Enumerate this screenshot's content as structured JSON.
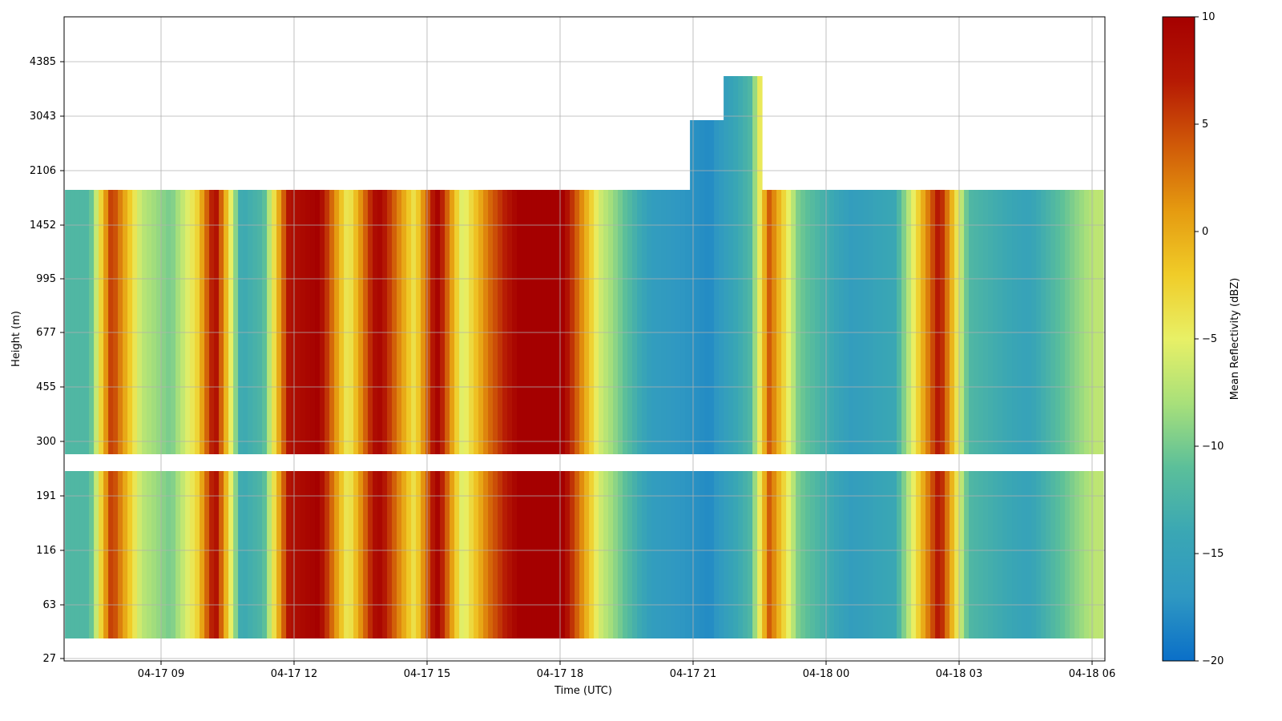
{
  "chart_data": {
    "type": "heatmap",
    "xlabel": "Time (UTC)",
    "ylabel": "Height (m)",
    "colorbar_label": "Mean Reflectivity (dBZ)",
    "x_ticks": [
      "04-17 09",
      "04-17 12",
      "04-17 15",
      "04-17 18",
      "04-17 21",
      "04-18 00",
      "04-18 03",
      "04-18 06"
    ],
    "y_ticks": [
      "27",
      "63",
      "116",
      "191",
      "300",
      "455",
      "677",
      "995",
      "1452",
      "2106",
      "3043",
      "4385"
    ],
    "colorbar_ticks": [
      "10",
      "5",
      "0",
      "−5",
      "−10",
      "−15",
      "−20"
    ],
    "zlim": [
      -20,
      10
    ],
    "colormap": [
      "#0a6fc8",
      "#2f98c2",
      "#3aa7b4",
      "#5bbf9a",
      "#a8e07a",
      "#e8f066",
      "#f0cc28",
      "#e59a10",
      "#d05a08",
      "#b61a04",
      "#a50000"
    ],
    "grid": true,
    "gap_band_height": "between 300 and 191 (no data)",
    "time_range_utc": [
      "04-17 06:50",
      "04-18 06:15"
    ],
    "reflectivity_profile_by_time": [
      {
        "time": "04-17 07:20",
        "dbz": -12
      },
      {
        "time": "04-17 07:50",
        "dbz": 6
      },
      {
        "time": "04-17 08:30",
        "dbz": -7
      },
      {
        "time": "04-17 09:10",
        "dbz": -10
      },
      {
        "time": "04-17 09:45",
        "dbz": -3
      },
      {
        "time": "04-17 10:10",
        "dbz": 9
      },
      {
        "time": "04-17 10:45",
        "dbz": -14
      },
      {
        "time": "04-17 11:15",
        "dbz": -12
      },
      {
        "time": "04-17 11:50",
        "dbz": 8
      },
      {
        "time": "04-17 12:30",
        "dbz": 10
      },
      {
        "time": "04-17 13:10",
        "dbz": -5
      },
      {
        "time": "04-17 13:50",
        "dbz": 10
      },
      {
        "time": "04-17 14:40",
        "dbz": -4
      },
      {
        "time": "04-17 15:10",
        "dbz": 10
      },
      {
        "time": "04-17 15:45",
        "dbz": -6
      },
      {
        "time": "04-17 16:20",
        "dbz": 3
      },
      {
        "time": "04-17 17:00",
        "dbz": 10
      },
      {
        "time": "04-17 18:00",
        "dbz": 10
      },
      {
        "time": "04-17 18:50",
        "dbz": -6
      },
      {
        "time": "04-17 20:00",
        "dbz": -16
      },
      {
        "time": "04-17 21:20",
        "dbz": -18
      },
      {
        "time": "04-17 22:15",
        "dbz": -12
      },
      {
        "time": "04-17 22:40",
        "dbz": 4
      },
      {
        "time": "04-17 23:20",
        "dbz": -10
      },
      {
        "time": "04-18 00:30",
        "dbz": -16
      },
      {
        "time": "04-18 01:30",
        "dbz": -14
      },
      {
        "time": "04-18 02:30",
        "dbz": 8
      },
      {
        "time": "04-18 03:10",
        "dbz": -12
      },
      {
        "time": "04-18 04:30",
        "dbz": -15
      },
      {
        "time": "04-18 06:00",
        "dbz": -7
      }
    ]
  }
}
